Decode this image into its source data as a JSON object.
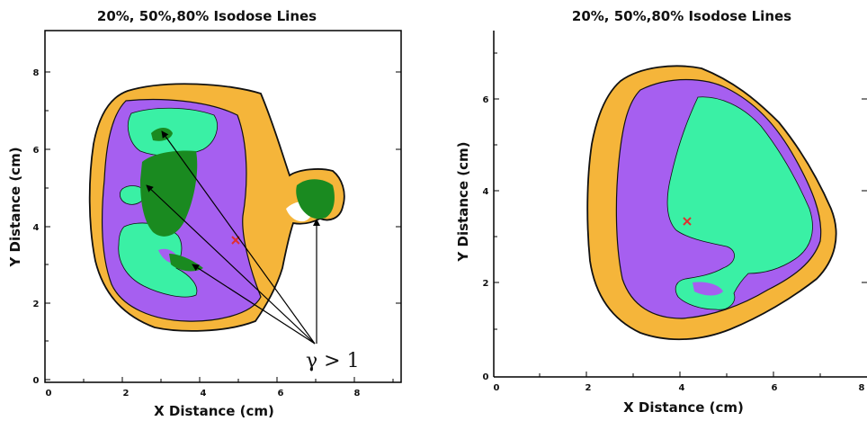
{
  "chart_data": [
    {
      "type": "contour",
      "title": "20%, 50%,80% Isodose Lines",
      "xlabel": "X Distance (cm)",
      "ylabel": "Y Distance (cm)",
      "xlim": [
        0,
        9.2
      ],
      "ylim": [
        0,
        9
      ],
      "xticks": [
        0,
        2,
        4,
        6,
        8
      ],
      "yticks": [
        0,
        2,
        4,
        6,
        8
      ],
      "isodose_levels": [
        {
          "level": "20%",
          "color": "#f5b53a"
        },
        {
          "level": "50%",
          "color": "#a65ff0"
        },
        {
          "level": "80%",
          "color": "#3af0a5"
        }
      ],
      "gamma_fail_color": "#1a8a20",
      "marker": {
        "x": 4.95,
        "y": 3.65,
        "color": "#e03030"
      },
      "annotation": {
        "text": "γ > 1",
        "x": 7.8,
        "y": 0.45
      },
      "arrow_targets": [
        {
          "x": 3.0,
          "y": 6.3
        },
        {
          "x": 2.6,
          "y": 4.9
        },
        {
          "x": 3.4,
          "y": 3.0
        },
        {
          "x": 7.0,
          "y": 4.1
        }
      ]
    },
    {
      "type": "contour",
      "title": "20%, 50%,80% Isodose Lines",
      "xlabel": "X Distance (cm)",
      "ylabel": "Y Distance (cm)",
      "xlim": [
        0,
        8
      ],
      "ylim": [
        0,
        7.5
      ],
      "xticks": [
        0,
        2,
        4,
        6,
        8
      ],
      "yticks": [
        0,
        2,
        4,
        6
      ],
      "isodose_levels": [
        {
          "level": "20%",
          "color": "#f5b53a"
        },
        {
          "level": "50%",
          "color": "#a65ff0"
        },
        {
          "level": "80%",
          "color": "#3af0a5"
        }
      ],
      "marker": {
        "x": 4.1,
        "y": 3.35,
        "color": "#e03030"
      }
    }
  ]
}
